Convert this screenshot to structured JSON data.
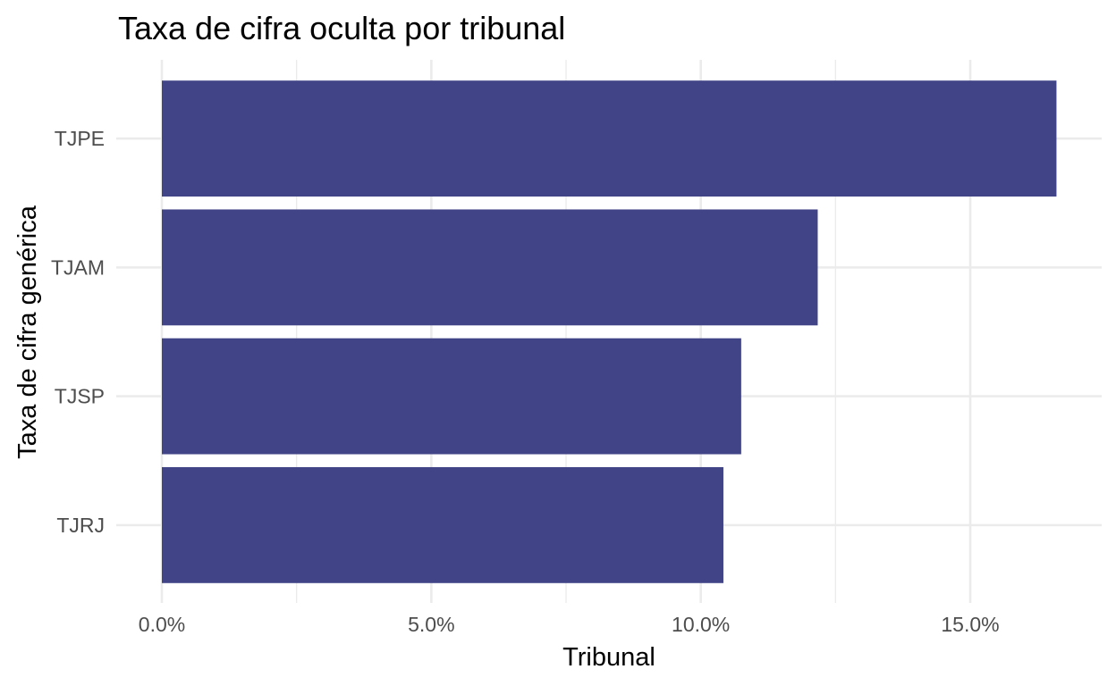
{
  "chart_data": {
    "type": "bar",
    "orientation": "horizontal",
    "title": "Taxa de cifra oculta por tribunal",
    "xlabel": "Tribunal",
    "ylabel": "Taxa de cifra genérica",
    "categories": [
      "TJPE",
      "TJAM",
      "TJSP",
      "TJRJ"
    ],
    "values": [
      0.166,
      0.1217,
      0.1075,
      0.1042
    ],
    "xlim": [
      0,
      0.174
    ],
    "x_ticks": [
      0,
      0.05,
      0.1,
      0.15
    ],
    "x_tick_labels": [
      "0.0%",
      "5.0%",
      "10.0%",
      "15.0%"
    ],
    "grid": true,
    "legend": "none",
    "bar_color": "#414487"
  }
}
